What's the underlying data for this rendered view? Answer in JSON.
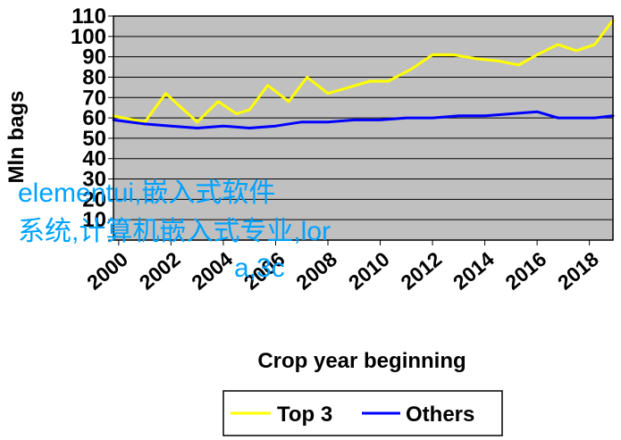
{
  "chart_data": {
    "type": "line",
    "title": "",
    "xlabel": "Crop year beginning",
    "ylabel": "Mln bags",
    "xlim": [
      1999.8,
      2018.9
    ],
    "ylim": [
      0,
      110
    ],
    "x_ticks": [
      "2000",
      "2002",
      "2004",
      "2006",
      "2008",
      "2010",
      "2012",
      "2014",
      "2016",
      "2018"
    ],
    "y_ticks": [
      "0",
      "10",
      "20",
      "30",
      "40",
      "50",
      "60",
      "70",
      "80",
      "90",
      "100",
      "110"
    ],
    "grid": true,
    "legend_position": "bottom",
    "series": [
      {
        "name": "Top 3",
        "color": "#ffff00",
        "x": [
          1999.8,
          2001.0,
          2001.8,
          2003.0,
          2003.8,
          2004.5,
          2005.0,
          2005.7,
          2006.5,
          2007.2,
          2008.0,
          2008.8,
          2009.6,
          2010.3,
          2011.2,
          2012.0,
          2012.8,
          2013.7,
          2014.5,
          2015.3,
          2016.0,
          2016.8,
          2017.5,
          2018.2,
          2018.9
        ],
        "y": [
          61,
          58,
          72,
          58,
          68,
          62,
          64,
          76,
          68,
          80,
          72,
          75,
          78,
          78,
          84,
          91,
          91,
          89,
          88,
          86,
          91,
          96,
          93,
          96,
          108
        ]
      },
      {
        "name": "Others",
        "color": "#0000ff",
        "x": [
          1999.8,
          2001.0,
          2002.0,
          2003.0,
          2004.0,
          2005.0,
          2006.0,
          2007.0,
          2008.0,
          2009.0,
          2010.0,
          2011.0,
          2012.0,
          2013.0,
          2014.0,
          2015.0,
          2016.0,
          2016.8,
          2017.5,
          2018.2,
          2018.9
        ],
        "y": [
          59,
          57,
          56,
          55,
          56,
          55,
          56,
          58,
          58,
          59,
          59,
          60,
          60,
          61,
          61,
          62,
          63,
          60,
          60,
          60,
          61
        ]
      }
    ]
  },
  "overlay": {
    "line1": "elementui,嵌入式软件",
    "line2": "系统,计算机嵌入式专业,lor",
    "line3": "a,3c"
  }
}
